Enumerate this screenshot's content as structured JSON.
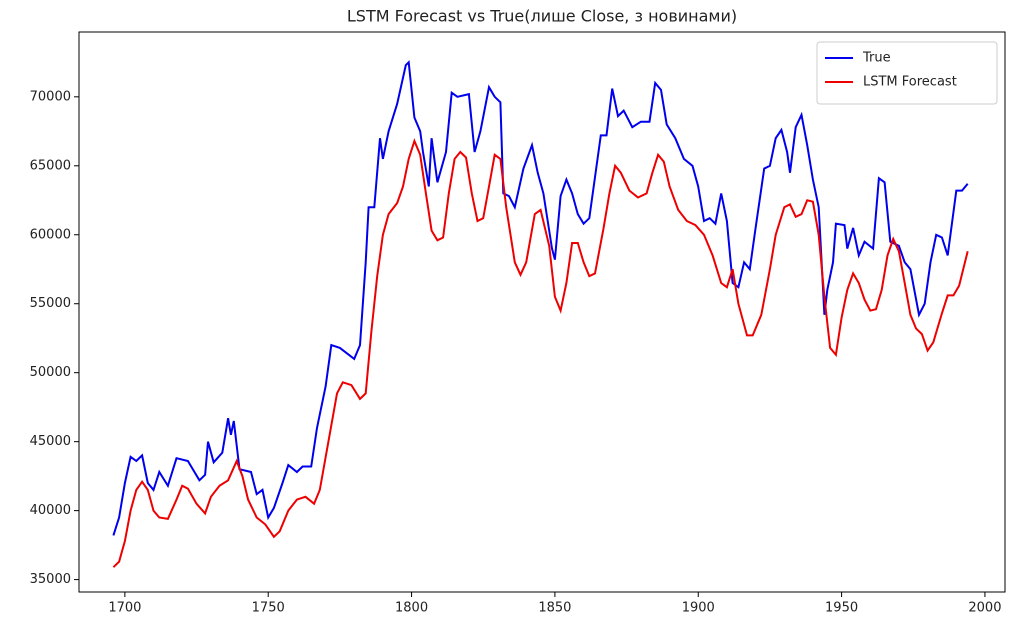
{
  "chart_data": {
    "type": "line",
    "title": "LSTM Forecast vs True(лише Close, з новинами)",
    "xlim": [
      1684,
      2007
    ],
    "ylim": [
      34100,
      74700
    ],
    "xticks": [
      1700,
      1750,
      1800,
      1850,
      1900,
      1950,
      2000
    ],
    "yticks": [
      35000,
      40000,
      45000,
      50000,
      55000,
      60000,
      65000,
      70000
    ],
    "legend": "upper right",
    "series": [
      {
        "name": "True",
        "color": "#0000ee",
        "x": [
          1696,
          1698,
          1700,
          1702,
          1704,
          1706,
          1708,
          1710,
          1712,
          1715,
          1718,
          1722,
          1726,
          1728,
          1729,
          1731,
          1734,
          1736,
          1737,
          1738,
          1740,
          1744,
          1746,
          1748,
          1750,
          1752,
          1755,
          1757,
          1760,
          1762,
          1765,
          1767,
          1770,
          1772,
          1775,
          1780,
          1782,
          1784,
          1785,
          1787,
          1789,
          1790,
          1792,
          1795,
          1798,
          1799,
          1801,
          1803,
          1804,
          1806,
          1807,
          1809,
          1812,
          1814,
          1816,
          1820,
          1822,
          1824,
          1827,
          1829,
          1831,
          1832,
          1834,
          1836,
          1839,
          1842,
          1844,
          1846,
          1849,
          1850,
          1852,
          1854,
          1856,
          1858,
          1860,
          1862,
          1866,
          1868,
          1870,
          1872,
          1874,
          1877,
          1880,
          1883,
          1885,
          1887,
          1889,
          1892,
          1895,
          1898,
          1900,
          1902,
          1904,
          1906,
          1908,
          1910,
          1912,
          1914,
          1916,
          1918,
          1920,
          1923,
          1925,
          1927,
          1929,
          1931,
          1932,
          1934,
          1936,
          1938,
          1940,
          1942,
          1944,
          1945,
          1947,
          1948,
          1951,
          1952,
          1954,
          1956,
          1958,
          1961,
          1963,
          1965,
          1967,
          1970,
          1972,
          1974,
          1977,
          1979,
          1981,
          1983,
          1985,
          1987,
          1990,
          1992,
          1994
        ],
        "values": [
          38200,
          39500,
          42000,
          43900,
          43600,
          44000,
          42000,
          41500,
          42800,
          41800,
          43800,
          43600,
          42200,
          42600,
          45000,
          43500,
          44200,
          46700,
          45500,
          46500,
          43000,
          42800,
          41200,
          41500,
          39500,
          40200,
          42000,
          43300,
          42800,
          43200,
          43200,
          46000,
          49000,
          52000,
          51800,
          51000,
          52000,
          58000,
          62000,
          62000,
          67000,
          65500,
          67500,
          69500,
          72300,
          72500,
          68500,
          67500,
          66000,
          63500,
          67000,
          63800,
          66000,
          70300,
          70000,
          70200,
          66000,
          67500,
          70700,
          70000,
          69600,
          63000,
          62800,
          62000,
          64800,
          66500,
          64500,
          63000,
          59000,
          58200,
          62800,
          64000,
          63000,
          61500,
          60800,
          61200,
          67200,
          67200,
          70600,
          68600,
          69000,
          67800,
          68200,
          68200,
          71000,
          70500,
          68000,
          67000,
          65500,
          65000,
          63500,
          61000,
          61200,
          60800,
          63000,
          61000,
          56500,
          56200,
          58000,
          57500,
          60500,
          64800,
          65000,
          67000,
          67600,
          66000,
          64500,
          67800,
          68700,
          66500,
          64000,
          62000,
          54200,
          56000,
          58000,
          60800,
          60700,
          59000,
          60500,
          58500,
          59500,
          59000,
          64100,
          63800,
          59500,
          59200,
          58000,
          57500,
          54200,
          55000,
          58000,
          60000,
          59800,
          58500,
          63200,
          63200,
          63700
        ]
      },
      {
        "name": "LSTM Forecast",
        "color": "#ee0000",
        "x": [
          1696,
          1698,
          1700,
          1702,
          1704,
          1706,
          1708,
          1710,
          1712,
          1715,
          1718,
          1720,
          1722,
          1725,
          1728,
          1730,
          1733,
          1736,
          1739,
          1741,
          1743,
          1746,
          1749,
          1752,
          1754,
          1757,
          1760,
          1763,
          1766,
          1768,
          1771,
          1774,
          1776,
          1779,
          1782,
          1784,
          1786,
          1788,
          1790,
          1792,
          1795,
          1797,
          1799,
          1801,
          1803,
          1805,
          1807,
          1809,
          1811,
          1813,
          1815,
          1817,
          1819,
          1821,
          1823,
          1825,
          1827,
          1829,
          1831,
          1833,
          1836,
          1838,
          1840,
          1843,
          1845,
          1848,
          1850,
          1852,
          1854,
          1856,
          1858,
          1860,
          1862,
          1864,
          1867,
          1869,
          1871,
          1873,
          1876,
          1879,
          1882,
          1884,
          1886,
          1888,
          1890,
          1893,
          1896,
          1899,
          1902,
          1905,
          1908,
          1910,
          1912,
          1914,
          1917,
          1919,
          1922,
          1925,
          1927,
          1930,
          1932,
          1934,
          1936,
          1938,
          1940,
          1942,
          1944,
          1946,
          1948,
          1950,
          1952,
          1954,
          1956,
          1958,
          1960,
          1962,
          1964,
          1966,
          1968,
          1970,
          1972,
          1974,
          1976,
          1978,
          1980,
          1982,
          1985,
          1987,
          1989,
          1991,
          1994
        ],
        "values": [
          35900,
          36300,
          37800,
          40000,
          41500,
          42100,
          41500,
          40000,
          39500,
          39400,
          40800,
          41800,
          41600,
          40500,
          39800,
          41000,
          41800,
          42200,
          43600,
          42500,
          40800,
          39500,
          39000,
          38100,
          38500,
          40000,
          40800,
          41000,
          40500,
          41500,
          45000,
          48500,
          49300,
          49100,
          48100,
          48500,
          53000,
          57000,
          60000,
          61500,
          62300,
          63500,
          65500,
          66800,
          65800,
          63000,
          60300,
          59600,
          59800,
          63000,
          65500,
          66000,
          65600,
          63000,
          61000,
          61200,
          63500,
          65800,
          65500,
          62000,
          58000,
          57100,
          58000,
          61500,
          61800,
          59200,
          55500,
          54500,
          56500,
          59400,
          59400,
          58000,
          57000,
          57200,
          60500,
          63000,
          65000,
          64500,
          63200,
          62700,
          63000,
          64500,
          65800,
          65300,
          63500,
          61800,
          61000,
          60700,
          60000,
          58500,
          56500,
          56200,
          57500,
          55000,
          52700,
          52700,
          54200,
          57500,
          60000,
          62000,
          62200,
          61300,
          61500,
          62500,
          62400,
          60000,
          55500,
          51800,
          51300,
          54000,
          56000,
          57200,
          56500,
          55300,
          54500,
          54600,
          56000,
          58500,
          59700,
          58800,
          56500,
          54200,
          53200,
          52800,
          51600,
          52200,
          54300,
          55600,
          55600,
          56300,
          58800
        ]
      }
    ]
  }
}
